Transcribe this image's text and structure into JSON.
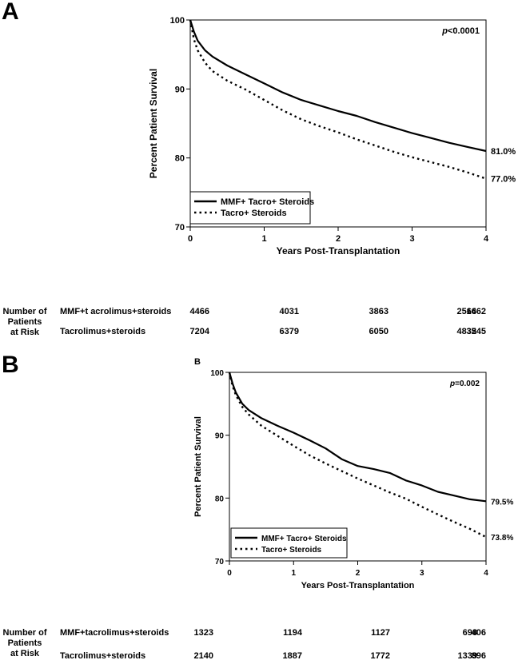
{
  "panels": [
    {
      "letter": "A",
      "sublabel": "",
      "pvalue_prefix": "p",
      "pvalue_rest": "<0.0001",
      "chart_data": {
        "type": "line",
        "xlabel": "Years Post-Transplantation",
        "ylabel": "Percent  Patient  Survival",
        "xlim": [
          0,
          4
        ],
        "ylim": [
          70,
          100
        ],
        "xticks": [
          0,
          1,
          2,
          3,
          4
        ],
        "yticks": [
          70,
          80,
          90,
          100
        ],
        "legend_position": "bottom-left",
        "series": [
          {
            "name": "MMF+ Tacro+ Steroids",
            "style": "solid",
            "end_label": "81.0%",
            "x": [
              0,
              0.05,
              0.1,
              0.2,
              0.3,
              0.5,
              0.75,
              1.0,
              1.25,
              1.5,
              1.75,
              2.0,
              2.25,
              2.5,
              2.75,
              3.0,
              3.25,
              3.5,
              3.75,
              4.0
            ],
            "y": [
              100,
              98.3,
              97.0,
              95.6,
              94.7,
              93.4,
              92.1,
              90.8,
              89.5,
              88.4,
              87.6,
              86.8,
              86.1,
              85.2,
              84.4,
              83.6,
              82.9,
              82.2,
              81.6,
              81.0
            ]
          },
          {
            "name": "Tacro+ Steroids",
            "style": "dotted",
            "end_label": "77.0%",
            "x": [
              0,
              0.05,
              0.1,
              0.2,
              0.3,
              0.5,
              0.75,
              1.0,
              1.25,
              1.5,
              1.75,
              2.0,
              2.25,
              2.5,
              2.75,
              3.0,
              3.25,
              3.5,
              3.75,
              4.0
            ],
            "y": [
              100,
              97.2,
              95.6,
              93.8,
              92.6,
              91.2,
              89.9,
              88.4,
              86.9,
              85.6,
              84.6,
              83.7,
              82.7,
              81.8,
              80.9,
              80.1,
              79.4,
              78.7,
              77.9,
              77.0
            ]
          }
        ]
      },
      "risk": {
        "header": [
          "Number of",
          "Patients",
          "at Risk"
        ],
        "rows": [
          {
            "label": "MMF+t acrolimus+steroids",
            "values": [
              "4466",
              "4031",
              "3863",
              "2564",
              "1662"
            ]
          },
          {
            "label": "Tacrolimus+steroids",
            "values": [
              "7204",
              "6379",
              "6050",
              "4832",
              "3545"
            ]
          }
        ]
      }
    },
    {
      "letter": "B",
      "sublabel": "B",
      "pvalue_prefix": "p",
      "pvalue_rest": "=0.002",
      "chart_data": {
        "type": "line",
        "xlabel": "Years Post-Transplantation",
        "ylabel": "Percent Patient Survival",
        "xlim": [
          0,
          4
        ],
        "ylim": [
          70,
          100
        ],
        "xticks": [
          0,
          1,
          2,
          3,
          4
        ],
        "yticks": [
          70,
          80,
          90,
          100
        ],
        "legend_position": "bottom-left",
        "series": [
          {
            "name": "MMF+ Tacro+ Steroids",
            "style": "solid",
            "end_label": "79.5%",
            "x": [
              0,
              0.05,
              0.1,
              0.2,
              0.3,
              0.5,
              0.75,
              1.0,
              1.25,
              1.5,
              1.75,
              2.0,
              2.25,
              2.5,
              2.75,
              3.0,
              3.25,
              3.5,
              3.75,
              4.0
            ],
            "y": [
              100,
              98.2,
              96.8,
              95.0,
              94.0,
              92.7,
              91.5,
              90.4,
              89.2,
              87.9,
              86.2,
              85.1,
              84.6,
              84.0,
              82.8,
              82.0,
              81.0,
              80.4,
              79.8,
              79.5
            ]
          },
          {
            "name": "Tacro+ Steroids",
            "style": "dotted",
            "end_label": "73.8%",
            "x": [
              0,
              0.05,
              0.1,
              0.2,
              0.3,
              0.5,
              0.75,
              1.0,
              1.25,
              1.5,
              1.75,
              2.0,
              2.25,
              2.5,
              2.75,
              3.0,
              3.25,
              3.5,
              3.75,
              4.0
            ],
            "y": [
              100,
              97.8,
              96.4,
              94.5,
              93.3,
              91.5,
              89.9,
              88.3,
              86.8,
              85.5,
              84.3,
              83.1,
              82.0,
              80.9,
              79.9,
              78.6,
              77.4,
              76.2,
              75.1,
              73.8
            ]
          }
        ]
      },
      "risk": {
        "header": [
          "Number of",
          "Patients",
          "at Risk"
        ],
        "rows": [
          {
            "label": "MMF+tacrolimus+steroids",
            "values": [
              "1323",
              "1194",
              "1127",
              "698",
              "406"
            ]
          },
          {
            "label": "Tacrolimus+steroids",
            "values": [
              "2140",
              "1887",
              "1772",
              "1339",
              "896"
            ]
          }
        ]
      }
    }
  ]
}
